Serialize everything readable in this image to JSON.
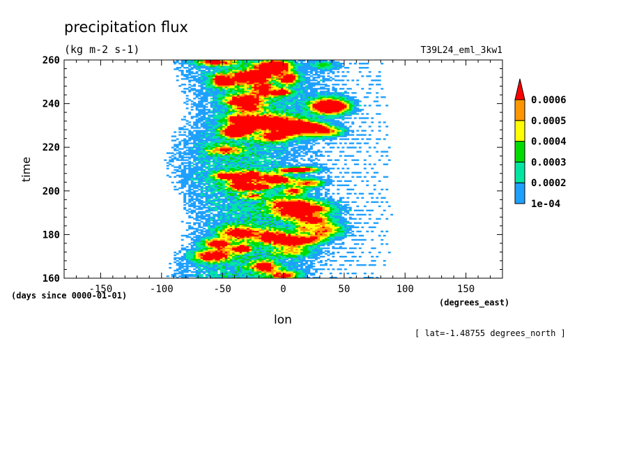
{
  "chart_data": {
    "type": "heatmap",
    "title": "precipitation flux",
    "units": "(kg m-2 s-1)",
    "experiment": "T39L24_eml_3kw1",
    "xlabel": "lon",
    "xunits": "(degrees_east)",
    "ylabel": "time",
    "yunits": "(days since 0000-01-01)",
    "footnote": "[ lat=-1.48755 degrees_north ]",
    "xlim": [
      -180,
      180
    ],
    "ylim": [
      160,
      260
    ],
    "xticks": [
      -150,
      -100,
      -50,
      0,
      50,
      100,
      150
    ],
    "xtick_labels": [
      "-150",
      "-100",
      "-50",
      "0",
      "50",
      "100",
      "150"
    ],
    "yticks": [
      160,
      180,
      200,
      220,
      240,
      260
    ],
    "ytick_labels": [
      "160",
      "180",
      "200",
      "220",
      "240",
      "260"
    ],
    "colorbar": {
      "levels": [
        0.0001,
        0.0002,
        0.0003,
        0.0004,
        0.0005,
        0.0006
      ],
      "labels": [
        "1e-04",
        "0.0002",
        "0.0003",
        "0.0004",
        "0.0005",
        "0.0006"
      ],
      "colors": [
        "#1ea0ff",
        "#00e6a0",
        "#00dc00",
        "#ffff00",
        "#ff9600",
        "#ff0000"
      ],
      "extend": "max"
    }
  }
}
